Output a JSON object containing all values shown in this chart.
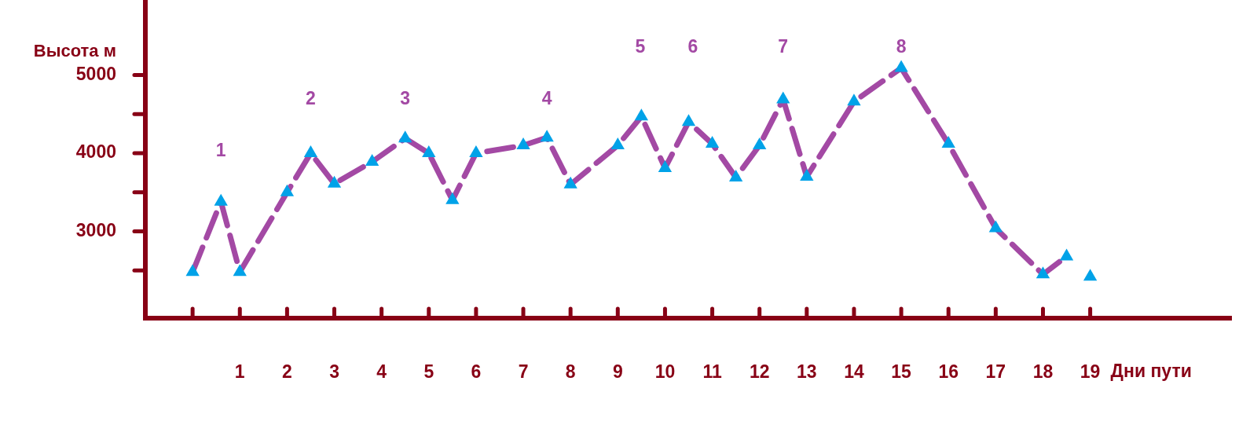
{
  "chart_data": {
    "type": "line",
    "xlabel": "Дни пути",
    "ylabel": "Высота м",
    "x": [
      0,
      0.6,
      1,
      2,
      2.5,
      3,
      3.8,
      4.5,
      5,
      5.5,
      6,
      7,
      7.5,
      8,
      9,
      9.5,
      10,
      10.5,
      11,
      11.5,
      12,
      12.5,
      13,
      14,
      15,
      16,
      17,
      18,
      18.5,
      18.75,
      19
    ],
    "series": [
      {
        "color": "#a349a4",
        "colors": [
          "#00a2e8",
          "#00a2e8",
          "#00a2e8",
          "#00a2e8",
          "#00a2e8",
          "#00a2e8",
          "#00a2e8",
          "#00a2e8",
          "#00a2e8",
          "#00a2e8",
          "#00a2e8",
          "#00a2e8",
          "#00a2e8",
          "#00a2e8",
          "#00a2e8",
          "#00a2e8",
          "#00a2e8",
          "#00a2e8",
          "#00a2e8",
          "#00a2e8",
          "#00a2e8",
          "#00a2e8",
          "#00a2e8",
          "#00a2e8",
          "#00a2e8",
          "#00a2e8",
          "#00a2e8",
          "#00a2e8",
          "#00a2e8",
          "#00a2e8",
          "#00a2e8"
        ],
        "values": [
          2480,
          3380,
          2480,
          3500,
          4000,
          3610,
          3890,
          4190,
          4000,
          3400,
          4000,
          4100,
          4200,
          3600,
          4100,
          4470,
          3810,
          4400,
          4120,
          3690,
          4100,
          4690,
          3700,
          4660,
          5090,
          4120,
          3040,
          2450,
          2680,
          null,
          2420
        ]
      }
    ],
    "xlim": [
      -1,
      22
    ],
    "ylim": [
      1890,
      5960
    ],
    "xticks": [
      {
        "value": 0,
        "label": null
      },
      1,
      2,
      3,
      4,
      5,
      6,
      7,
      8,
      9,
      10,
      11,
      12,
      13,
      14,
      15,
      16,
      17,
      18,
      19
    ],
    "yticks": [
      {
        "value": 2500,
        "label": null
      },
      3000,
      {
        "value": 3500,
        "label": null
      },
      4000,
      {
        "value": 4500,
        "label": null
      },
      5000
    ],
    "annotations": [
      {
        "text": "1",
        "x": 0.6,
        "y": 3380
      },
      {
        "text": "2",
        "x": 2.5,
        "y": 4000
      },
      {
        "text": "3",
        "x": 4.5,
        "y": 4190
      },
      {
        "text": "4",
        "x": 7.5,
        "y": 4200
      },
      "5",
      "6",
      {
        "text": "7",
        "x": 12.5,
        "y": 4690
      },
      {
        "text": "8",
        "x": 15,
        "y": 5090
      }
    ],
    "marker": "triangle",
    "line_style": "dashed",
    "grid": false,
    "legend": false
  }
}
